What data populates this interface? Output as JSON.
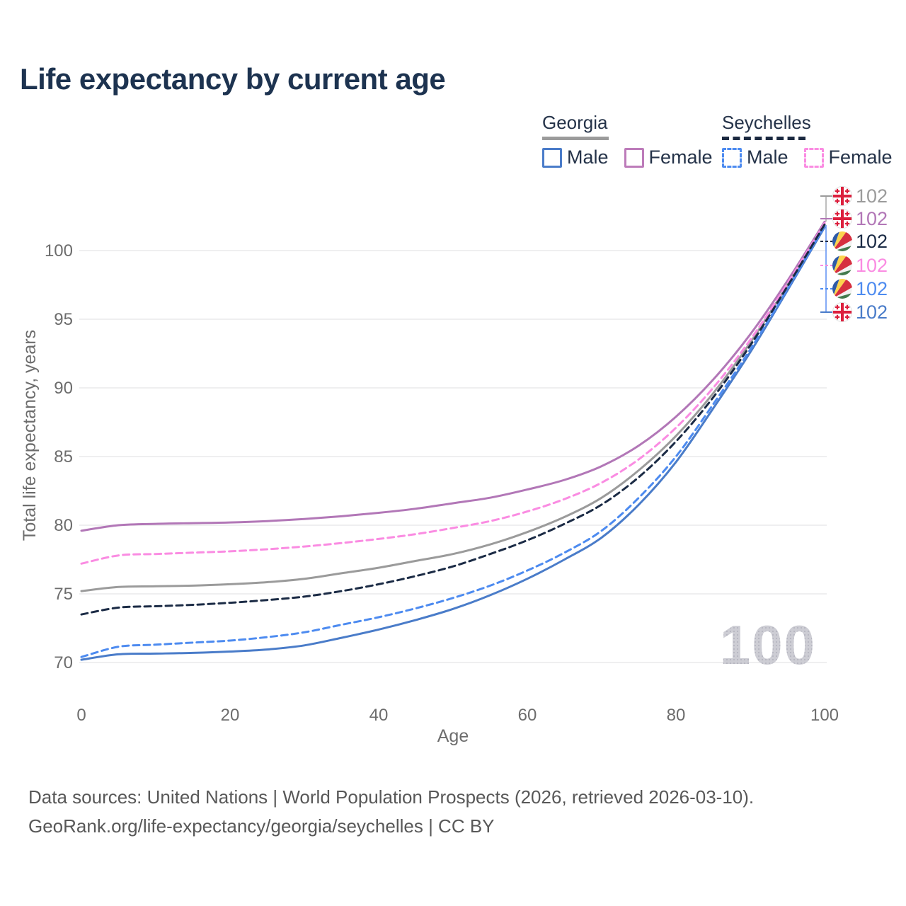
{
  "header": {
    "title": "Life expectancy by current age"
  },
  "legend": {
    "groups": [
      {
        "id": "georgia",
        "label": "Georgia",
        "line_style": "solid",
        "underline_color": "#9b9b9b",
        "items": [
          {
            "id": "georgia-male",
            "label": "Male",
            "color": "#4a7cc9",
            "swatch_style": "solid"
          },
          {
            "id": "georgia-female",
            "label": "Female",
            "color": "#bd7cba",
            "swatch_style": "solid"
          }
        ]
      },
      {
        "id": "seychelles",
        "label": "Seychelles",
        "line_style": "dashed",
        "underline_color": "#1b2940",
        "items": [
          {
            "id": "seychelles-male",
            "label": "Male",
            "color": "#4d8bf0",
            "swatch_style": "dashed"
          },
          {
            "id": "seychelles-female",
            "label": "Female",
            "color": "#fa8ce2",
            "swatch_style": "dashed"
          }
        ]
      }
    ]
  },
  "chart_data": {
    "type": "line",
    "title": "Life expectancy by current age",
    "xlabel": "Age",
    "ylabel": "Total life expectancy, years",
    "xlim": [
      0,
      100
    ],
    "ylim": [
      69,
      103
    ],
    "x_ticks": [
      0,
      20,
      40,
      60,
      80,
      100
    ],
    "y_ticks": [
      70,
      75,
      80,
      85,
      90,
      95,
      100
    ],
    "grid": "horizontal",
    "legend_position": "top-right",
    "x": [
      0,
      5,
      10,
      15,
      20,
      25,
      30,
      35,
      40,
      45,
      50,
      55,
      60,
      65,
      70,
      75,
      80,
      85,
      90,
      95,
      100
    ],
    "series": [
      {
        "name": "Georgia Female",
        "country": "Georgia",
        "sex": "Female",
        "style": "solid",
        "color": "#b277b7",
        "values": [
          79.6,
          80.0,
          80.1,
          80.15,
          80.2,
          80.3,
          80.45,
          80.65,
          80.9,
          81.2,
          81.6,
          82.0,
          82.6,
          83.3,
          84.3,
          85.8,
          87.9,
          90.6,
          93.9,
          97.8,
          102.1
        ]
      },
      {
        "name": "Georgia Male",
        "country": "Georgia",
        "sex": "Male",
        "style": "solid",
        "color": "#4a7cc9",
        "values": [
          70.2,
          70.6,
          70.65,
          70.7,
          70.8,
          70.95,
          71.25,
          71.8,
          72.4,
          73.1,
          73.9,
          74.9,
          76.1,
          77.5,
          79.1,
          81.5,
          84.6,
          88.5,
          92.6,
          97.1,
          101.7
        ]
      },
      {
        "name": "Georgia (both sexes)",
        "country": "Georgia",
        "sex": "Both",
        "style": "solid",
        "color": "#9b9b9b",
        "values": [
          75.2,
          75.5,
          75.55,
          75.6,
          75.7,
          75.85,
          76.1,
          76.5,
          76.9,
          77.4,
          77.9,
          78.6,
          79.5,
          80.6,
          82.0,
          84.0,
          86.5,
          89.6,
          93.3,
          97.5,
          101.9
        ]
      },
      {
        "name": "Seychelles Female",
        "country": "Seychelles",
        "sex": "Female",
        "style": "dashed",
        "color": "#fa8ce2",
        "values": [
          77.2,
          77.8,
          77.9,
          78.0,
          78.1,
          78.25,
          78.45,
          78.7,
          79.0,
          79.35,
          79.8,
          80.3,
          81.0,
          81.9,
          83.1,
          84.8,
          87.1,
          90.0,
          93.5,
          97.6,
          102.0
        ]
      },
      {
        "name": "Seychelles Male",
        "country": "Seychelles",
        "sex": "Male",
        "style": "dashed",
        "color": "#4d8bf0",
        "values": [
          70.4,
          71.15,
          71.3,
          71.45,
          71.6,
          71.85,
          72.2,
          72.75,
          73.3,
          73.95,
          74.7,
          75.6,
          76.7,
          78.0,
          79.6,
          82.0,
          85.0,
          88.8,
          92.8,
          97.2,
          101.8
        ]
      },
      {
        "name": "Seychelles (both sexes)",
        "country": "Seychelles",
        "sex": "Both",
        "style": "dashed",
        "color": "#1b2b45",
        "values": [
          73.5,
          74.0,
          74.1,
          74.2,
          74.35,
          74.55,
          74.8,
          75.2,
          75.7,
          76.3,
          77.0,
          77.9,
          78.9,
          80.1,
          81.5,
          83.5,
          86.1,
          89.3,
          93.1,
          97.4,
          101.9
        ]
      }
    ],
    "end_labels": [
      {
        "series": 2,
        "flag": "georgia",
        "text": "102"
      },
      {
        "series": 0,
        "flag": "georgia",
        "text": "102"
      },
      {
        "series": 5,
        "flag": "seychelles",
        "text": "102"
      },
      {
        "series": 3,
        "flag": "seychelles",
        "text": "102"
      },
      {
        "series": 4,
        "flag": "seychelles",
        "text": "102"
      },
      {
        "series": 1,
        "flag": "georgia",
        "text": "102"
      }
    ]
  },
  "watermark": "100",
  "footer": {
    "line1": "Data sources: United Nations | World Population Prospects (2026, retrieved 2026-03-10).",
    "line2": "GeoRank.org/life-expectancy/georgia/seychelles | CC BY"
  }
}
